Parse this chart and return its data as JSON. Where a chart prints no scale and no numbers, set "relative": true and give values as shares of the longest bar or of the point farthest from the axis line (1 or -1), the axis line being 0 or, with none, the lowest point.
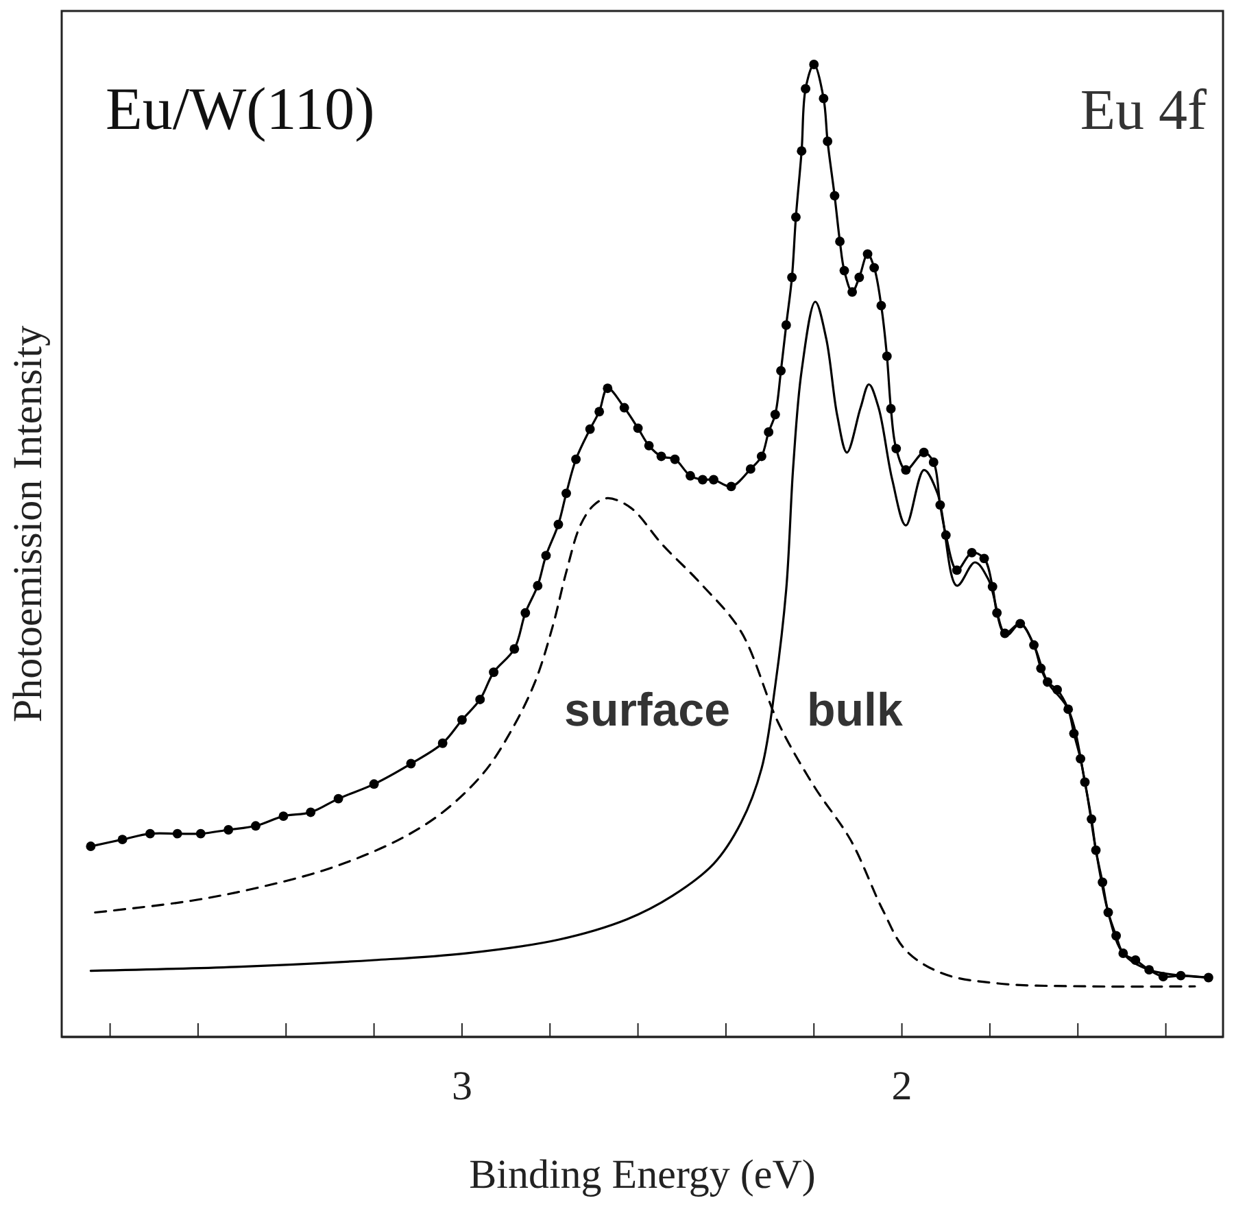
{
  "chart_data": {
    "type": "line",
    "title": "Eu/W(110)",
    "subtitle": "Eu 4f",
    "xlabel": "Binding Energy (eV)",
    "ylabel": "Photoemission Intensity",
    "relative": true,
    "xlim": [
      3.91,
      1.27
    ],
    "xticks": [
      {
        "value": 3.8,
        "label": null
      },
      {
        "value": 3.6,
        "label": null
      },
      {
        "value": 3.4,
        "label": null
      },
      {
        "value": 3.2,
        "label": null
      },
      3,
      {
        "value": 2.8,
        "label": null
      },
      {
        "value": 2.6,
        "label": null
      },
      {
        "value": 2.4,
        "label": null
      },
      {
        "value": 2.2,
        "label": null
      },
      2,
      {
        "value": 1.8,
        "label": null
      },
      {
        "value": 1.6,
        "label": null
      },
      {
        "value": 1.4,
        "label": null
      }
    ],
    "grid": false,
    "series": [
      {
        "color": "#000000",
        "marker": "circle",
        "line_style": "solid",
        "x": [
          3.844,
          3.772,
          3.709,
          3.647,
          3.594,
          3.531,
          3.469,
          3.406,
          3.344,
          3.281,
          3.2,
          3.116,
          3.044,
          3.0,
          2.959,
          2.928,
          2.881,
          2.856,
          2.828,
          2.809,
          2.781,
          2.763,
          2.741,
          2.709,
          2.688,
          2.669,
          2.631,
          2.6,
          2.575,
          2.547,
          2.516,
          2.481,
          2.453,
          2.428,
          2.388,
          2.344,
          2.319,
          2.303,
          2.288,
          2.275,
          2.263,
          2.25,
          2.241,
          2.228,
          2.219,
          2.2,
          2.178,
          2.169,
          2.153,
          2.141,
          2.131,
          2.113,
          2.097,
          2.078,
          2.063,
          2.047,
          2.034,
          2.025,
          2.013,
          1.991,
          1.95,
          1.928,
          1.913,
          1.9,
          1.875,
          1.841,
          1.813,
          1.794,
          1.784,
          1.766,
          1.731,
          1.7,
          1.684,
          1.669,
          1.647,
          1.622,
          1.609,
          1.594,
          1.584,
          1.569,
          1.559,
          1.544,
          1.531,
          1.513,
          1.497,
          1.469,
          1.438,
          1.406,
          1.366,
          1.303
        ],
        "values": [
          0.196,
          0.203,
          0.209,
          0.209,
          0.209,
          0.213,
          0.217,
          0.227,
          0.231,
          0.245,
          0.26,
          0.281,
          0.302,
          0.326,
          0.347,
          0.375,
          0.399,
          0.436,
          0.464,
          0.495,
          0.527,
          0.559,
          0.594,
          0.625,
          0.643,
          0.667,
          0.647,
          0.626,
          0.608,
          0.597,
          0.594,
          0.577,
          0.573,
          0.573,
          0.566,
          0.584,
          0.597,
          0.622,
          0.64,
          0.685,
          0.732,
          0.781,
          0.843,
          0.911,
          0.975,
          1,
          0.965,
          0.921,
          0.865,
          0.818,
          0.788,
          0.766,
          0.781,
          0.805,
          0.791,
          0.752,
          0.7,
          0.646,
          0.605,
          0.583,
          0.601,
          0.591,
          0.547,
          0.516,
          0.48,
          0.498,
          0.492,
          0.463,
          0.436,
          0.415,
          0.425,
          0.403,
          0.379,
          0.365,
          0.357,
          0.337,
          0.312,
          0.286,
          0.262,
          0.224,
          0.192,
          0.159,
          0.128,
          0.104,
          0.086,
          0.079,
          0.069,
          0.062,
          0.063,
          0.061
        ]
      },
      {
        "name": "surface",
        "color": "#000000",
        "marker": "none",
        "line_style": "dashed",
        "x": [
          3.834,
          3.616,
          3.459,
          3.303,
          3.147,
          3.044,
          2.95,
          2.888,
          2.834,
          2.794,
          2.763,
          2.731,
          2.7,
          2.669,
          2.616,
          2.544,
          2.459,
          2.366,
          2.281,
          2.2,
          2.116,
          2.044,
          1.991,
          1.906,
          1.781,
          1.575,
          1.334
        ],
        "values": [
          0.128,
          0.14,
          0.154,
          0.173,
          0.202,
          0.231,
          0.272,
          0.315,
          0.365,
          0.422,
          0.478,
          0.526,
          0.547,
          0.554,
          0.544,
          0.506,
          0.467,
          0.417,
          0.323,
          0.258,
          0.202,
          0.131,
          0.089,
          0.065,
          0.055,
          0.052,
          0.052
        ]
      },
      {
        "name": "bulk",
        "color": "#000000",
        "marker": "none",
        "line_style": "solid",
        "x": [
          3.844,
          3.513,
          3.2,
          2.991,
          2.781,
          2.625,
          2.522,
          2.428,
          2.366,
          2.319,
          2.288,
          2.263,
          2.247,
          2.228,
          2.197,
          2.172,
          2.147,
          2.125,
          2.094,
          2.075,
          2.053,
          2.022,
          1.991,
          1.95,
          1.919,
          1.875,
          1.834,
          1.803,
          1.763,
          1.731,
          1.7,
          1.669,
          1.622,
          1.584,
          1.559,
          1.531,
          1.497,
          1.438,
          1.303
        ],
        "values": [
          0.068,
          0.072,
          0.079,
          0.086,
          0.1,
          0.121,
          0.145,
          0.178,
          0.22,
          0.276,
          0.361,
          0.46,
          0.587,
          0.685,
          0.756,
          0.718,
          0.639,
          0.601,
          0.647,
          0.671,
          0.647,
          0.573,
          0.526,
          0.583,
          0.559,
          0.464,
          0.488,
          0.47,
          0.413,
          0.425,
          0.403,
          0.365,
          0.337,
          0.262,
          0.192,
          0.128,
          0.086,
          0.069,
          0.061
        ]
      }
    ]
  }
}
